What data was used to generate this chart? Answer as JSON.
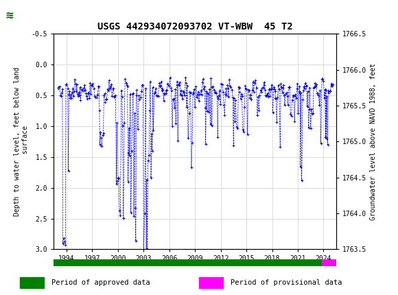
{
  "title": "USGS 442934072093702 VT-WBW  45 T2",
  "ylabel_left": "Depth to water level, feet below land\n surface",
  "ylabel_right": "Groundwater level above NAVD 1988, feet",
  "ylim_left_top": -0.5,
  "ylim_left_bottom": 3.0,
  "ylim_right_top": 1766.5,
  "ylim_right_bottom": 1763.5,
  "xticks": [
    1994,
    1997,
    2000,
    2003,
    2006,
    2009,
    2012,
    2015,
    2018,
    2021,
    2024
  ],
  "yticks_left": [
    -0.5,
    0.0,
    0.5,
    1.0,
    1.5,
    2.0,
    2.5,
    3.0
  ],
  "yticks_right": [
    1766.5,
    1766.0,
    1765.5,
    1765.0,
    1764.5,
    1764.0,
    1763.5
  ],
  "data_color": "#0000FF",
  "approved_color": "#008000",
  "provisional_color": "#FF00FF",
  "header_color": "#006400",
  "xmin": 1992.5,
  "xmax": 2025.5,
  "approved_end": 2023.8,
  "title_fontsize": 10,
  "tick_fontsize": 7,
  "label_fontsize": 7
}
